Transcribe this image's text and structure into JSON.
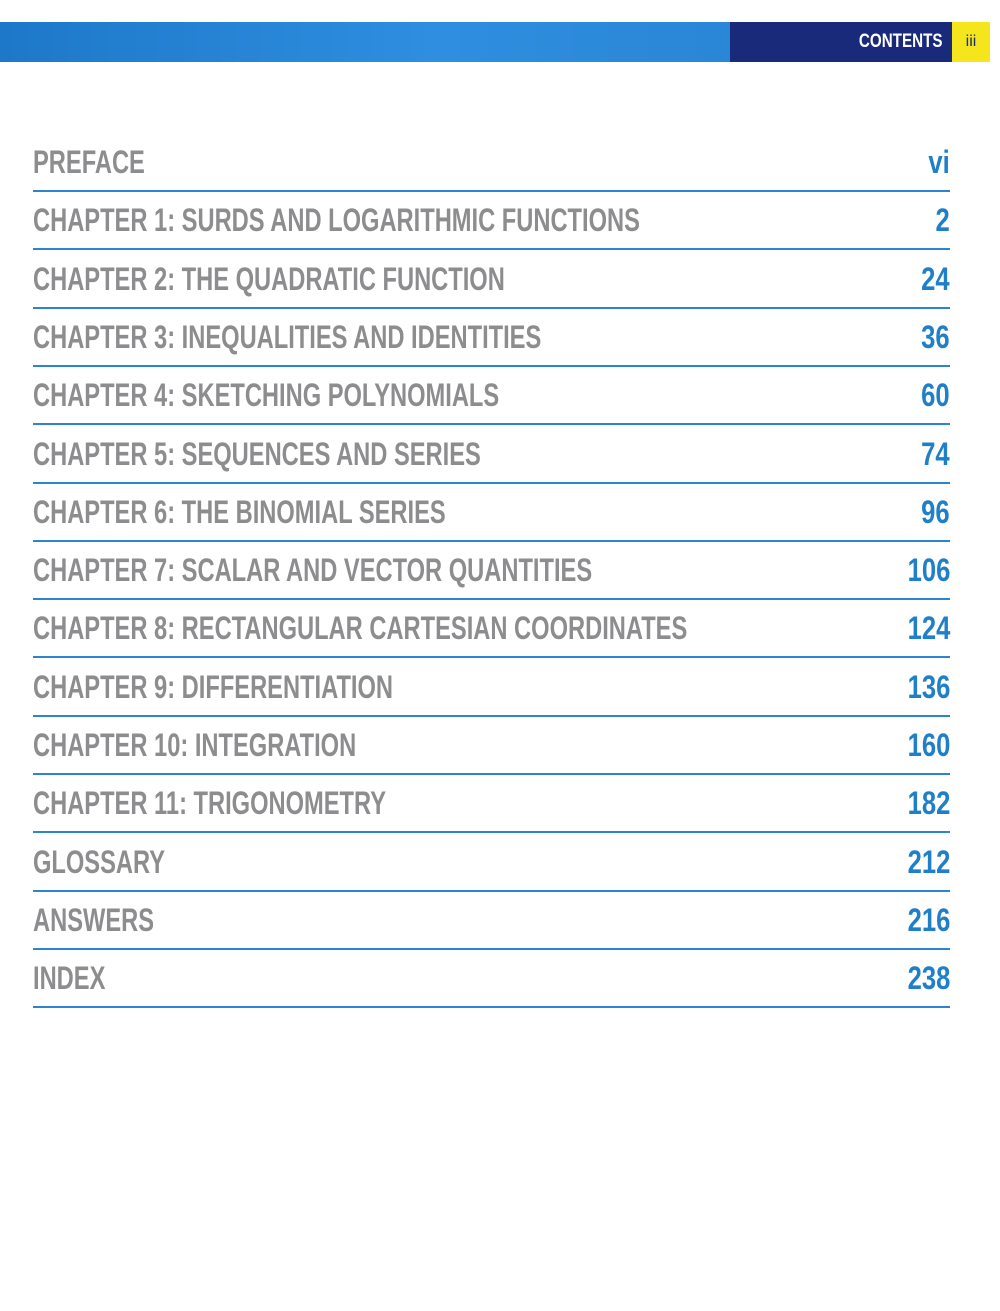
{
  "header": {
    "section": "CONTENTS",
    "page": "iii"
  },
  "entries": [
    {
      "title": "PREFACE",
      "page": "vi"
    },
    {
      "title": "CHAPTER 1: SURDS AND LOGARITHMIC FUNCTIONS",
      "page": "2"
    },
    {
      "title": "CHAPTER 2: THE QUADRATIC FUNCTION",
      "page": "24"
    },
    {
      "title": "CHAPTER 3: INEQUALITIES AND IDENTITIES",
      "page": "36"
    },
    {
      "title": "CHAPTER 4: SKETCHING POLYNOMIALS",
      "page": "60"
    },
    {
      "title": "CHAPTER 5: SEQUENCES AND SERIES",
      "page": "74"
    },
    {
      "title": "CHAPTER 6: THE BINOMIAL SERIES",
      "page": "96"
    },
    {
      "title": "CHAPTER 7: SCALAR AND VECTOR QUANTITIES",
      "page": "106"
    },
    {
      "title": "CHAPTER 8: RECTANGULAR CARTESIAN COORDINATES",
      "page": "124"
    },
    {
      "title": "CHAPTER 9: DIFFERENTIATION",
      "page": "136"
    },
    {
      "title": "CHAPTER 10: INTEGRATION",
      "page": "160"
    },
    {
      "title": "CHAPTER 11: TRIGONOMETRY",
      "page": "182"
    },
    {
      "title": "GLOSSARY",
      "page": "212"
    },
    {
      "title": "ANSWERS",
      "page": "216"
    },
    {
      "title": "INDEX",
      "page": "238"
    }
  ]
}
